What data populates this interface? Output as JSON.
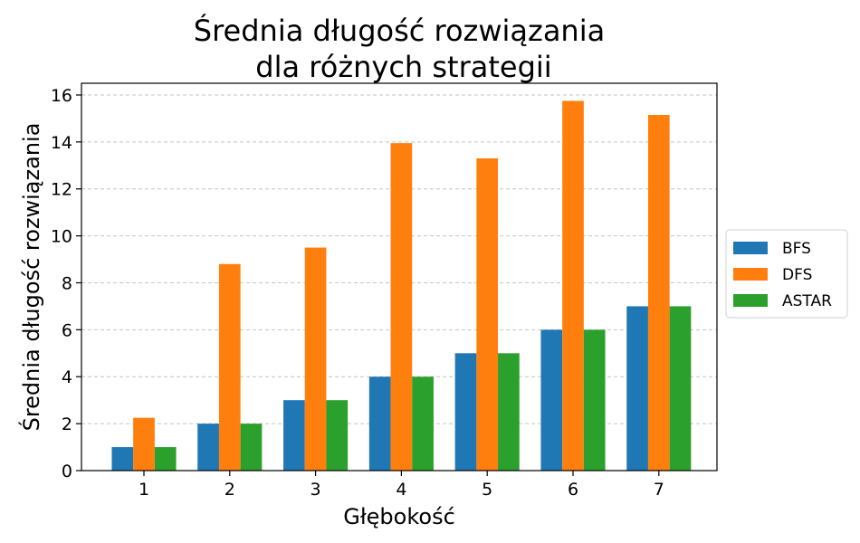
{
  "chart_data": {
    "type": "bar",
    "title_line1": "Średnia długość rozwiązania",
    "title_line2": "dla różnych strategii",
    "xlabel": "Głębokość",
    "ylabel": "Średnia długość rozwiązania",
    "categories": [
      "1",
      "2",
      "3",
      "4",
      "5",
      "6",
      "7"
    ],
    "series": [
      {
        "name": "BFS",
        "color": "#1f77b4",
        "values": [
          1,
          2,
          3,
          4,
          5,
          6,
          7
        ]
      },
      {
        "name": "DFS",
        "color": "#ff7f0e",
        "values": [
          2.25,
          8.8,
          9.5,
          13.95,
          13.3,
          15.75,
          15.15
        ]
      },
      {
        "name": "ASTAR",
        "color": "#2ca02c",
        "values": [
          1,
          2,
          3,
          4,
          5,
          6,
          7
        ]
      }
    ],
    "ylim": [
      0,
      16.5
    ],
    "yticks": [
      "0",
      "2",
      "4",
      "6",
      "8",
      "10",
      "12",
      "14",
      "16"
    ],
    "grid": "horizontal-dashed",
    "legend_position": "right"
  }
}
